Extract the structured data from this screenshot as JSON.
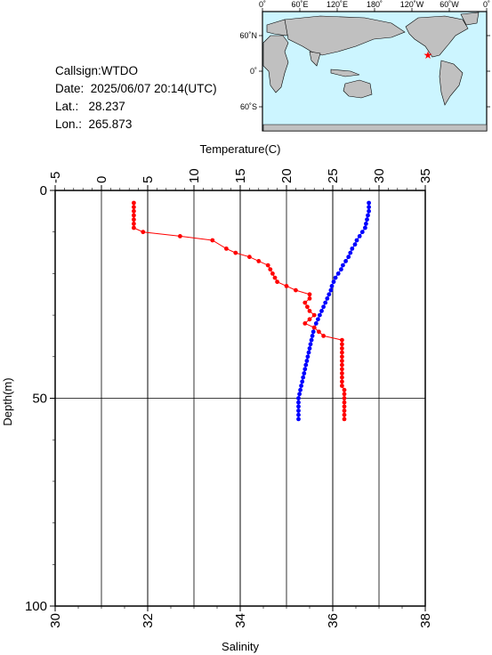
{
  "info": {
    "callsign": "Callsign:WTDO",
    "date": "Date:  2025/06/07 20:14(UTC)",
    "lat": "Lat.:   28.237",
    "lon": "Lon.:  265.873"
  },
  "map": {
    "lon_labels": [
      "0˚",
      "60˚E",
      "120˚E",
      "180˚",
      "120˚W",
      "60˚W",
      "0˚"
    ],
    "lat_labels": [
      "60˚N",
      "0˚",
      "60˚S"
    ],
    "marker": {
      "lat": 28.237,
      "lon": 265.873,
      "symbol": "star",
      "color": "#ff0000"
    },
    "ocean_color": "#ccf5ff",
    "land_color": "#c0c0c0"
  },
  "chart_data": {
    "type": "line",
    "title": "",
    "top_axis": {
      "label": "Temperature(C)",
      "range": [
        -5,
        35
      ],
      "ticks": [
        "-5",
        "0",
        "5",
        "10",
        "15",
        "20",
        "25",
        "30",
        "35"
      ]
    },
    "bottom_axis": {
      "label": "Salinity",
      "range": [
        30,
        38
      ],
      "ticks": [
        "30",
        "32",
        "34",
        "36",
        "38"
      ]
    },
    "y_axis": {
      "label": "Depth(m)",
      "range": [
        0,
        100
      ],
      "inverted": true,
      "ticks": [
        "0",
        "50",
        "100"
      ]
    },
    "grid": true,
    "series": [
      {
        "axis": "temperature",
        "color": "#0000ff",
        "depth": [
          3,
          4,
          5,
          6,
          7,
          8,
          9,
          10,
          11,
          12,
          13,
          14,
          15,
          16,
          17,
          18,
          19,
          20,
          21,
          22,
          23,
          24,
          25,
          26,
          27,
          28,
          29,
          30,
          31,
          32,
          33,
          34,
          35,
          36,
          37,
          38,
          39,
          40,
          41,
          42,
          43,
          44,
          45,
          46,
          47,
          48,
          49,
          50,
          51,
          52,
          53,
          54,
          55
        ],
        "values": [
          28.9,
          28.9,
          28.9,
          28.8,
          28.7,
          28.6,
          28.5,
          28.2,
          27.9,
          27.6,
          27.4,
          27.1,
          26.9,
          26.7,
          26.4,
          26.1,
          25.9,
          25.6,
          25.3,
          25.1,
          24.9,
          24.8,
          24.6,
          24.4,
          24.2,
          24.0,
          23.8,
          23.6,
          23.4,
          23.2,
          23.0,
          22.9,
          22.8,
          22.7,
          22.6,
          22.5,
          22.4,
          22.3,
          22.2,
          22.1,
          22.0,
          21.9,
          21.8,
          21.7,
          21.6,
          21.5,
          21.4,
          21.3,
          21.3,
          21.3,
          21.3,
          21.3,
          21.3
        ]
      },
      {
        "axis": "salinity",
        "color": "#ff0000",
        "depth": [
          3,
          4,
          5,
          6,
          7,
          8,
          9,
          10,
          11,
          12,
          14,
          15,
          16,
          17,
          18,
          19,
          20,
          21,
          22,
          23,
          24,
          25,
          26,
          27,
          28,
          29,
          30,
          31,
          32,
          33,
          34,
          35,
          36,
          37,
          38,
          39,
          40,
          41,
          42,
          43,
          44,
          45,
          46,
          47,
          48,
          49,
          50,
          51,
          52,
          53,
          54,
          55
        ],
        "values": [
          31.7,
          31.7,
          31.7,
          31.7,
          31.7,
          31.7,
          31.7,
          31.9,
          32.7,
          33.4,
          33.7,
          33.9,
          34.2,
          34.4,
          34.6,
          34.65,
          34.7,
          34.75,
          34.8,
          35.0,
          35.2,
          35.5,
          35.5,
          35.4,
          35.45,
          35.5,
          35.6,
          35.5,
          35.4,
          35.6,
          35.7,
          35.8,
          36.2,
          36.2,
          36.2,
          36.2,
          36.2,
          36.2,
          36.2,
          36.2,
          36.2,
          36.2,
          36.2,
          36.2,
          36.25,
          36.25,
          36.25,
          36.25,
          36.25,
          36.25,
          36.25,
          36.25
        ]
      }
    ]
  }
}
